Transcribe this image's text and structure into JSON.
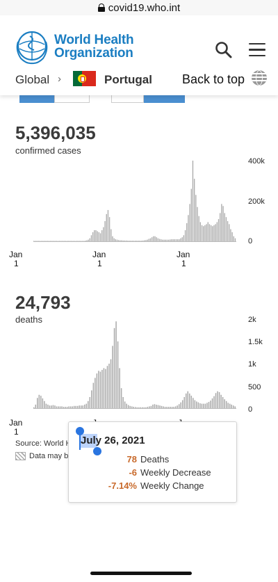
{
  "browser": {
    "url": "covid19.who.int"
  },
  "header": {
    "brand_line1": "World Health",
    "brand_line2": "Organization",
    "breadcrumb_global": "Global",
    "breadcrumb_separator": "›",
    "breadcrumb_country": "Portugal",
    "back_to_top": "Back to top"
  },
  "colors": {
    "accent": "#1b7ec2",
    "tab_active": "#4a8fd0",
    "bar": "#a9a9a9",
    "tooltip_value": "#c8692a"
  },
  "cases": {
    "total": "5,396,035",
    "label": "confirmed cases",
    "y_ticks": [
      "400k",
      "200k",
      "0"
    ],
    "x_ticks": [
      {
        "month": "Jan",
        "day": "1"
      },
      {
        "month": "Jan",
        "day": "1"
      },
      {
        "month": "Jan",
        "day": "1"
      }
    ]
  },
  "deaths": {
    "total": "24,793",
    "label": "deaths",
    "y_ticks": [
      "2k",
      "1.5k",
      "1k",
      "500",
      "0"
    ],
    "x_ticks": [
      {
        "month": "Jan",
        "day": "1"
      },
      {
        "month": "J",
        "day": ""
      },
      {
        "month": "J",
        "day": ""
      }
    ]
  },
  "source_text": "Source: World H",
  "note_text": "Data may b",
  "tooltip": {
    "date": "July 26, 2021",
    "rows": [
      {
        "value": "78",
        "label": "Deaths"
      },
      {
        "value": "-6",
        "label": "Weekly Decrease"
      },
      {
        "value": "-7.14%",
        "label": "Weekly Change"
      }
    ]
  },
  "chart_data": [
    {
      "type": "bar",
      "title": "confirmed cases",
      "ylim": [
        0,
        400000
      ],
      "y_ticks": [
        "400k",
        "200k",
        "0"
      ],
      "values": [
        0,
        0,
        0,
        0,
        0,
        0,
        0,
        0,
        0,
        0,
        0,
        0,
        0,
        0,
        0,
        0,
        0,
        0,
        0,
        0,
        2000,
        2000,
        2000,
        2000,
        2000,
        2000,
        2000,
        2000,
        2000,
        2000,
        2000,
        2000,
        2000,
        2000,
        3000,
        5000,
        8000,
        15000,
        30000,
        45000,
        55000,
        55000,
        50000,
        45000,
        40000,
        55000,
        70000,
        100000,
        135000,
        155000,
        120000,
        60000,
        25000,
        15000,
        10000,
        8000,
        6000,
        5000,
        5000,
        4000,
        4000,
        4000,
        3000,
        3000,
        3000,
        3000,
        3000,
        3000,
        3000,
        3000,
        3000,
        3000,
        4000,
        5000,
        6000,
        8000,
        12000,
        15000,
        20000,
        25000,
        25000,
        20000,
        15000,
        12000,
        10000,
        8000,
        8000,
        8000,
        8000,
        8000,
        9000,
        10000,
        10000,
        10000,
        10000,
        10000,
        10000,
        15000,
        20000,
        30000,
        55000,
        90000,
        130000,
        185000,
        260000,
        400000,
        310000,
        230000,
        170000,
        125000,
        95000,
        80000,
        75000,
        80000,
        85000,
        95000,
        85000,
        80000,
        75000,
        80000,
        85000,
        95000,
        110000,
        140000,
        185000,
        175000,
        140000,
        120000,
        100000,
        85000,
        60000,
        45000,
        25000,
        15000
      ]
    },
    {
      "type": "bar",
      "title": "deaths",
      "ylim": [
        0,
        2000
      ],
      "y_ticks": [
        "2k",
        "1.5k",
        "1k",
        "500",
        "0"
      ],
      "values": [
        20,
        80,
        230,
        300,
        280,
        220,
        160,
        100,
        80,
        60,
        60,
        70,
        60,
        40,
        40,
        40,
        40,
        30,
        30,
        30,
        40,
        40,
        40,
        50,
        50,
        50,
        60,
        60,
        60,
        80,
        100,
        160,
        250,
        400,
        570,
        680,
        780,
        840,
        820,
        860,
        900,
        880,
        950,
        1000,
        1100,
        1400,
        1800,
        1950,
        1500,
        900,
        450,
        250,
        150,
        100,
        70,
        50,
        40,
        30,
        25,
        20,
        20,
        20,
        20,
        20,
        20,
        30,
        40,
        50,
        80,
        90,
        78,
        70,
        60,
        50,
        40,
        30,
        30,
        30,
        30,
        30,
        30,
        40,
        60,
        90,
        130,
        180,
        250,
        330,
        380,
        330,
        280,
        230,
        180,
        150,
        130,
        110,
        100,
        100,
        100,
        120,
        140,
        170,
        220,
        270,
        340,
        380,
        360,
        300,
        250,
        200,
        160,
        120,
        100,
        80,
        60,
        40
      ]
    }
  ]
}
